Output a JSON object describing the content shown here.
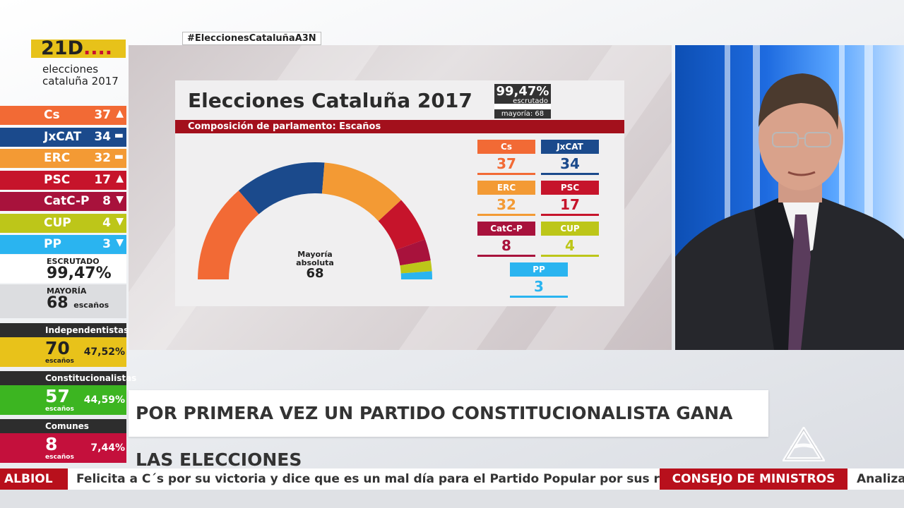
{
  "logo": {
    "big": "21D",
    "dots": "....",
    "line1": "elecciones",
    "line2": "cataluña 2017"
  },
  "hashtag": "#EleccionesCataluñaA3N",
  "sidebar": {
    "parties": [
      {
        "name": "Cs",
        "seats": "37",
        "trend": "▲",
        "color": "#f26a35"
      },
      {
        "name": "JxCAT",
        "seats": "34",
        "trend": "▬",
        "color": "#1b4a8c"
      },
      {
        "name": "ERC",
        "seats": "32",
        "trend": "▬",
        "color": "#f39a34"
      },
      {
        "name": "PSC",
        "seats": "17",
        "trend": "▲",
        "color": "#c6142b"
      },
      {
        "name": "CatC-P",
        "seats": "8",
        "trend": "▼",
        "color": "#a8123c"
      },
      {
        "name": "CUP",
        "seats": "4",
        "trend": "▼",
        "color": "#bdc619"
      },
      {
        "name": "PP",
        "seats": "3",
        "trend": "▼",
        "color": "#2ab4f0"
      }
    ],
    "scrutiny": {
      "label": "ESCRUTADO",
      "value": "99,47%"
    },
    "majority": {
      "label": "MAYORÍA",
      "value": "68",
      "unit": "escaños"
    },
    "blocs": [
      {
        "name": "Independentistas",
        "seats": "70",
        "unit": "escaños",
        "pct": "47,52%",
        "color": "#e8c21a",
        "text": "#222222"
      },
      {
        "name": "Constitucionalistas",
        "seats": "57",
        "unit": "escaños",
        "pct": "44,59%",
        "color": "#3cb521",
        "text": "#ffffff"
      },
      {
        "name": "Comunes",
        "seats": "8",
        "unit": "escaños",
        "pct": "7,44%",
        "color": "#c4103c",
        "text": "#ffffff"
      }
    ]
  },
  "graphic": {
    "title": "Elecciones Cataluña 2017",
    "scrutiny_pct": "99,47%",
    "scrutiny_label": "escrutado",
    "majority_label": "mayoría: 68",
    "subtitle": "Composición de parlamento: Escaños",
    "center_label_1": "Mayoría",
    "center_label_2": "absoluta",
    "center_value": "68",
    "tiles": [
      {
        "name": "Cs",
        "seats": "37",
        "color": "#f26a35"
      },
      {
        "name": "JxCAT",
        "seats": "34",
        "color": "#1b4a8c"
      },
      {
        "name": "ERC",
        "seats": "32",
        "color": "#f39a34"
      },
      {
        "name": "PSC",
        "seats": "17",
        "color": "#c6142b"
      },
      {
        "name": "CatC-P",
        "seats": "8",
        "color": "#a8123c"
      },
      {
        "name": "CUP",
        "seats": "4",
        "color": "#bdc619"
      },
      {
        "name": "PP",
        "seats": "3",
        "color": "#2ab4f0"
      }
    ]
  },
  "chart_data": {
    "type": "pie",
    "categories": [
      "Cs",
      "JxCAT",
      "ERC",
      "PSC",
      "CatC-P",
      "CUP",
      "PP"
    ],
    "values": [
      37,
      34,
      32,
      17,
      8,
      4,
      3
    ],
    "title": "Elecciones Cataluña 2017",
    "subtitle": "Composición de parlamento: Escaños"
  },
  "headline": "POR PRIMERA VEZ UN PARTIDO CONSTITUCIONALISTA GANA LAS ELECCIONES",
  "ticker": {
    "label1": "ALBIOL",
    "text1": "Felicita a C´s por su victoria y dice que es un mal día para el Partido Popular por sus resultados",
    "label2": "CONSEJO DE MINISTROS",
    "text2": "Analizar"
  }
}
